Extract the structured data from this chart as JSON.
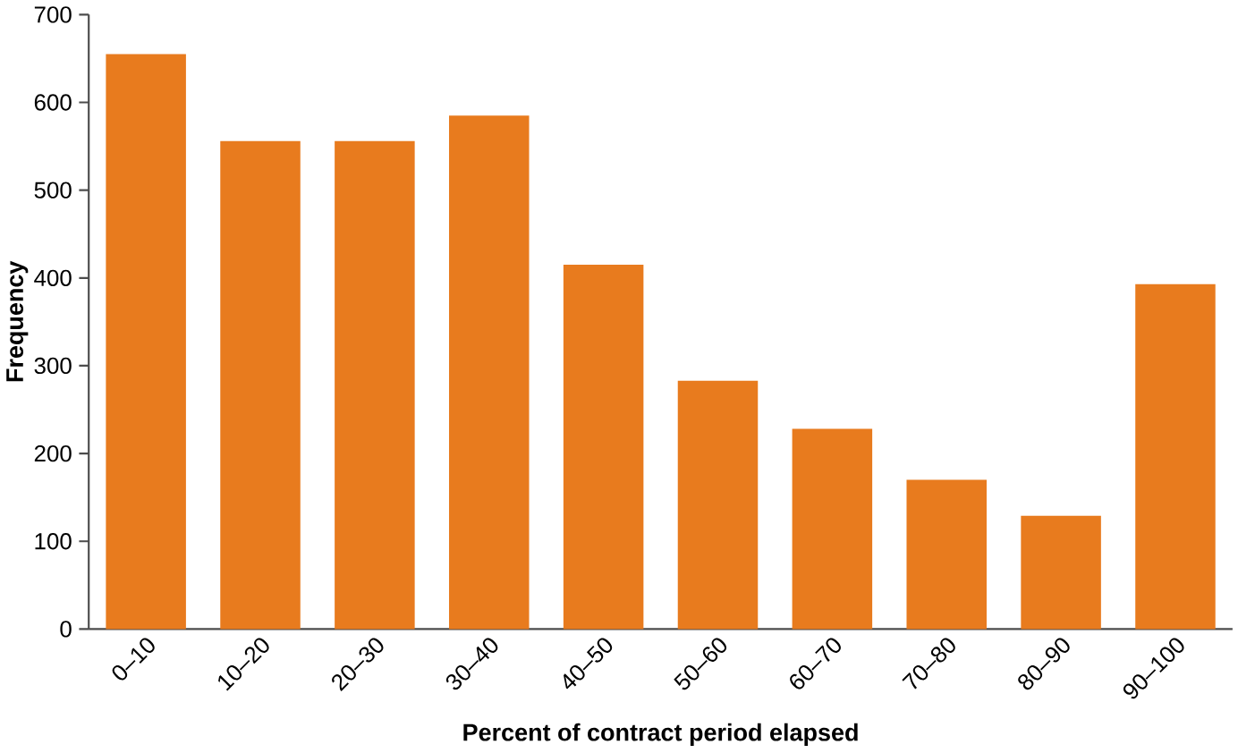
{
  "chart_data": {
    "type": "bar",
    "xlabel": "Percent of contract period elapsed",
    "ylabel": "Frequency",
    "categories": [
      "0–10",
      "10–20",
      "20–30",
      "30–40",
      "40–50",
      "50–60",
      "60–70",
      "70–80",
      "80–90",
      "90–100"
    ],
    "values": [
      655,
      556,
      556,
      585,
      415,
      283,
      228,
      170,
      129,
      393
    ],
    "color": "#e87b1e",
    "ylim": [
      0,
      700
    ],
    "yticks": [
      0,
      100,
      200,
      300,
      400,
      500,
      600,
      700
    ],
    "grid": false
  }
}
